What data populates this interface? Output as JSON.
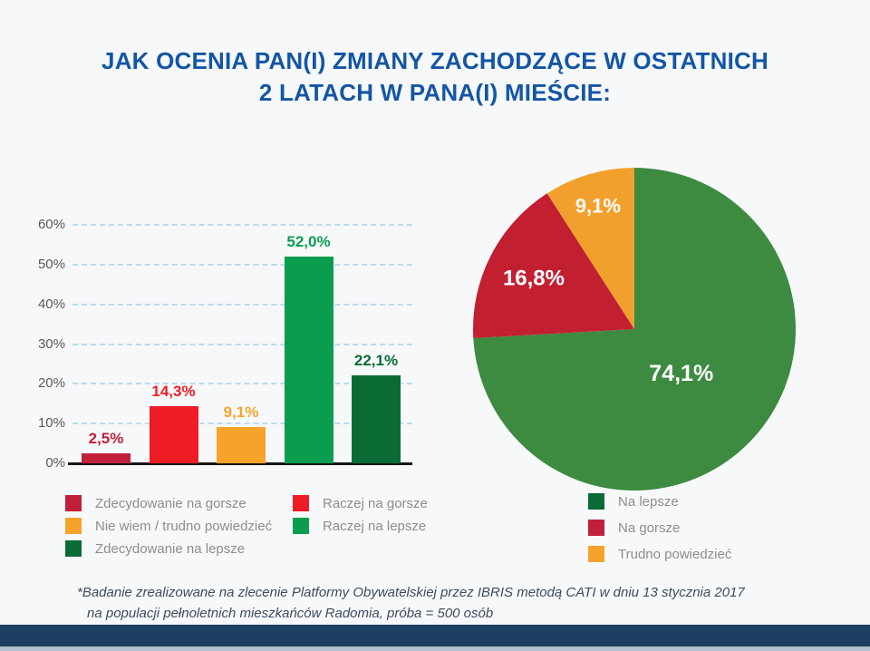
{
  "title": {
    "line1": "JAK OCENIA PAN(I) ZMIANY ZACHODZĄCE W OSTATNICH",
    "line2": "2 LATACH W PANA(I) MIEŚCIE:"
  },
  "colors": {
    "background": "#f7f8fa",
    "title_blue": "#1356a5",
    "dark_red": "#c1203a",
    "red": "#ee1c25",
    "orange": "#f5a32b",
    "green": "#0b9d4f",
    "dark_green": "#0a6b35",
    "pie_green": "#3d8b40",
    "pie_red": "#c22031",
    "pie_orange": "#f2a02d",
    "gridline": "#b8dcf2",
    "axis": "#141414",
    "tick_text": "#58595b",
    "legend_text": "#8d8d8d",
    "footnote_text": "#3d4c60",
    "bottom_bar": "#1c3e61",
    "bottom_strip": "#b3c0cd"
  },
  "chart_data": [
    {
      "type": "bar",
      "categories": [
        "Zdecydowanie na gorsze",
        "Raczej na gorsze",
        "Nie wiem / trudno powiedzieć",
        "Raczej na lepsze",
        "Zdecydowanie na lepsze"
      ],
      "values": [
        2.5,
        14.3,
        9.1,
        52.0,
        22.1
      ],
      "value_labels": [
        "2,5%",
        "14,3%",
        "9,1%",
        "52,0%",
        "22,1%"
      ],
      "bar_colors": [
        "#c1203a",
        "#ee1c25",
        "#f5a32b",
        "#0b9d4f",
        "#0a6b35"
      ],
      "yticks": [
        "0%",
        "10%",
        "20%",
        "30%",
        "40%",
        "50%",
        "60%"
      ],
      "ylim": [
        0,
        60
      ],
      "grid": "dashed-horizontal",
      "title": "",
      "xlabel": "",
      "ylabel": ""
    },
    {
      "type": "pie",
      "labels": [
        "Na lepsze",
        "Na gorsze",
        "Trudno powiedzieć"
      ],
      "values": [
        74.1,
        16.8,
        9.1
      ],
      "value_labels": [
        "74,1%",
        "16,8%",
        "9,1%"
      ],
      "slice_colors": [
        "#3d8b40",
        "#c22031",
        "#f2a02d"
      ],
      "start_angle_deg": 0,
      "direction": "clockwise",
      "label_radius_fractions": [
        0.4,
        0.7,
        0.8
      ],
      "label_font_sizes": [
        25,
        24,
        22
      ]
    }
  ],
  "legend_left": {
    "items": [
      {
        "label": "Zdecydowanie na gorsze",
        "color": "#c1203a"
      },
      {
        "label": "Raczej na gorsze",
        "color": "#ee1c25"
      },
      {
        "label": "Nie wiem / trudno powiedzieć",
        "color": "#f5a32b"
      },
      {
        "label": "Raczej na lepsze",
        "color": "#0b9d4f"
      },
      {
        "label": "Zdecydowanie na lepsze",
        "color": "#0a6b35"
      }
    ]
  },
  "legend_right": {
    "items": [
      {
        "label": "Na lepsze",
        "color": "#0a6b35"
      },
      {
        "label": "Na gorsze",
        "color": "#c1203a"
      },
      {
        "label": "Trudno powiedzieć",
        "color": "#f5a32b"
      }
    ]
  },
  "footnote": {
    "line1": "*Badanie zrealizowane na zlecenie Platformy Obywatelskiej przez IBRIS metodą CATI w dniu 13 stycznia 2017",
    "line2": "na populacji pełnoletnich mieszkańców Radomia, próba = 500 osób"
  }
}
